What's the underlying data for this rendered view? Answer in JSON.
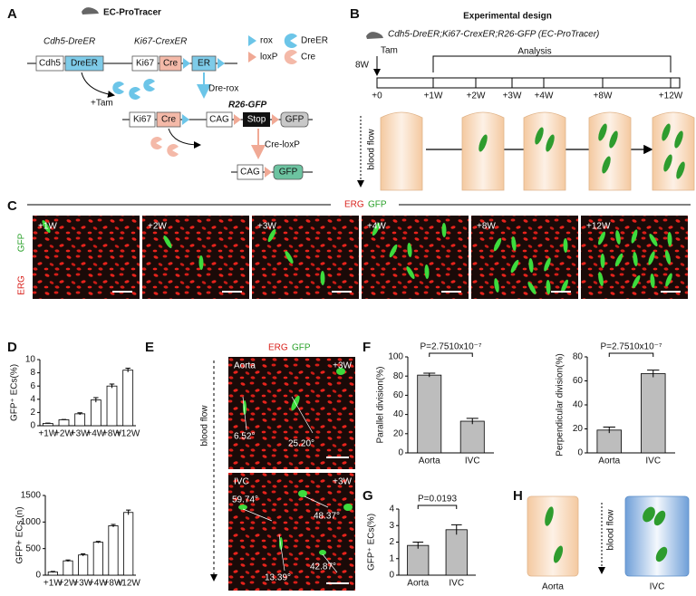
{
  "panels": {
    "A": {
      "letter": "A",
      "title": "EC-ProTracer",
      "allele1": "Cdh5-DreER",
      "allele2": "Ki67-CrexER",
      "row1": [
        "Cdh5",
        "DreER",
        "Ki67",
        "Cre",
        "ER"
      ],
      "legend": [
        "rox",
        "DreER",
        "loxP",
        "Cre"
      ],
      "tam": "+Tam",
      "dre_rox": "Dre-rox",
      "allele3": "R26-GFP",
      "row2": [
        "Ki67",
        "Cre",
        "CAG",
        "Stop",
        "GFP"
      ],
      "cre_loxp": "Cre-loxP",
      "row3": [
        "CAG",
        "GFP"
      ]
    },
    "B": {
      "letter": "B",
      "title": "Experimental design",
      "genotype": "Cdh5-DreER;Ki67-CrexER;R26-GFP (EC-ProTracer)",
      "tam": "Tam",
      "age": "8W",
      "analysis": "Analysis",
      "timeline": [
        "+0",
        "+1W",
        "+2W",
        "+3W",
        "+4W",
        "+8W",
        "+12W"
      ],
      "flow": "blood flow"
    },
    "C": {
      "letter": "C",
      "stain1": "ERG",
      "stain2": "GFP",
      "images": [
        "+1W",
        "+2W",
        "+3W",
        "+4W",
        "+8W",
        "+12W"
      ]
    },
    "D": {
      "letter": "D"
    },
    "E": {
      "letter": "E",
      "stain1": "ERG",
      "stain2": "GFP",
      "top": "Aorta",
      "bottom": "IVC",
      "time": "+3W",
      "angles_top": [
        "6.52°",
        "25.20°"
      ],
      "angles_bottom": [
        "59.74°",
        "48.37°",
        "13.39°",
        "42.87°"
      ],
      "flow": "blood flow"
    },
    "F": {
      "letter": "F"
    },
    "G": {
      "letter": "G"
    },
    "H": {
      "letter": "H",
      "left": "Aorta",
      "right": "IVC",
      "flow": "blood flow"
    }
  },
  "chart_data": [
    {
      "type": "bar",
      "ylabel": "GFP⁺ ECs(%)",
      "categories": [
        "+1W",
        "+2W",
        "+3W",
        "+4W",
        "+8W",
        "+12W"
      ],
      "values": [
        0.35,
        0.9,
        1.8,
        3.9,
        6.0,
        8.4
      ],
      "errors": [
        0.05,
        0.05,
        0.15,
        0.35,
        0.3,
        0.3
      ],
      "color": "#ffffff",
      "ylim": [
        0,
        10
      ],
      "yticks": [
        0,
        2,
        4,
        6,
        8,
        10
      ]
    },
    {
      "type": "bar",
      "ylabel": "GFP+ ECs (n)",
      "categories": [
        "+1W",
        "+2W",
        "+3W",
        "+4W",
        "+8W",
        "+12W"
      ],
      "values": [
        60,
        270,
        380,
        620,
        930,
        1180
      ],
      "errors": [
        10,
        15,
        20,
        15,
        25,
        45
      ],
      "color": "#ffffff",
      "ylim": [
        0,
        1500
      ],
      "yticks": [
        0,
        500,
        1000,
        1500
      ]
    },
    {
      "type": "bar",
      "ylabel": "Parallel division(%)",
      "categories": [
        "Aorta",
        "IVC"
      ],
      "values": [
        81,
        33
      ],
      "errors": [
        2,
        3
      ],
      "color": "#bdbdbd",
      "annotation": "P=2.7510x10⁻⁷",
      "ylim": [
        0,
        100
      ],
      "yticks": [
        0,
        20,
        40,
        60,
        80,
        100
      ]
    },
    {
      "type": "bar",
      "ylabel": "Perpendicular division(%)",
      "categories": [
        "Aorta",
        "IVC"
      ],
      "values": [
        19,
        66
      ],
      "errors": [
        2.5,
        3
      ],
      "color": "#bdbdbd",
      "annotation": "P=2.7510x10⁻⁷",
      "ylim": [
        0,
        80
      ],
      "yticks": [
        0,
        20,
        40,
        60,
        80
      ]
    },
    {
      "type": "bar",
      "ylabel": "GFP⁺ ECs(%)",
      "categories": [
        "Aorta",
        "IVC"
      ],
      "values": [
        1.8,
        2.75
      ],
      "errors": [
        0.2,
        0.3
      ],
      "color": "#bdbdbd",
      "annotation": "P=0.0193",
      "ylim": [
        0,
        4
      ],
      "yticks": [
        0,
        1,
        2,
        3,
        4
      ]
    }
  ]
}
